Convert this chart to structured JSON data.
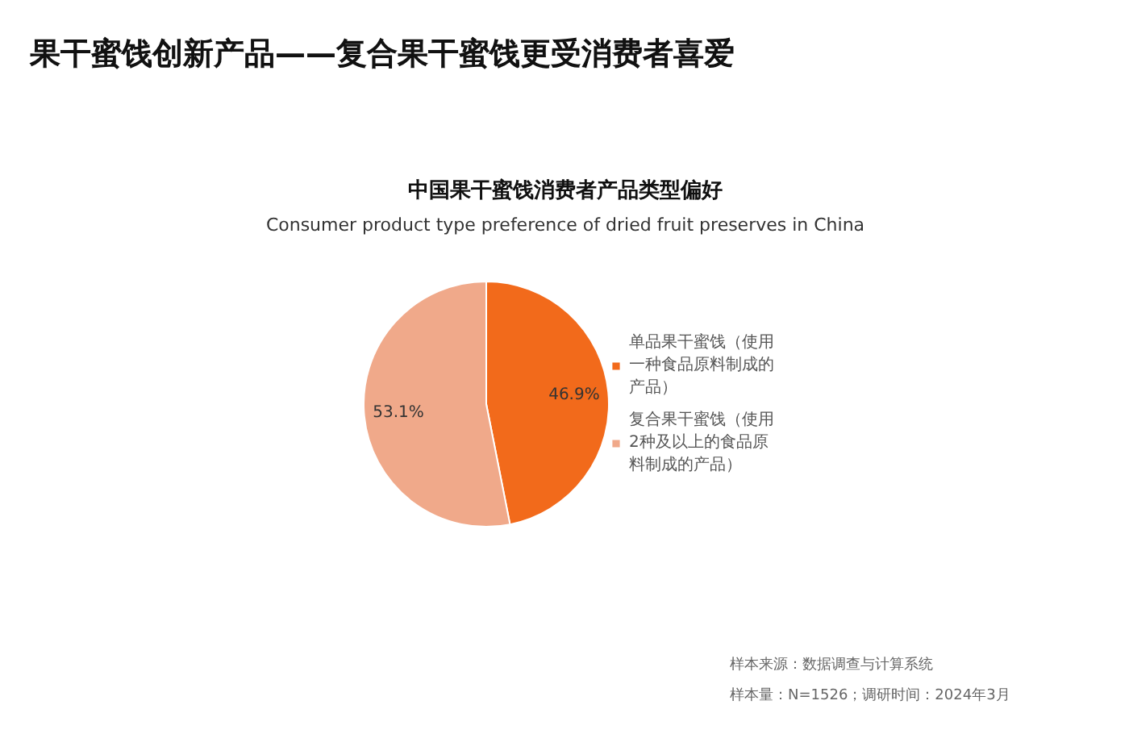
{
  "chart_data": {
    "type": "pie",
    "title": "果干蜜饯创新产品——复合果干蜜饯更受消费者喜爱",
    "subtitle": "中国果干蜜饯消费者产品类型偏好",
    "categories": [
      "单品果干蜜饯（使用一种食品原料制成的产品）",
      "复合果干蜜饯（使用2种及以上的食品原料制成的产品）"
    ],
    "values": [
      46.9,
      53.1
    ],
    "colors": [
      "#f26a1b",
      "#f0a98a"
    ],
    "value_labels": [
      "46.9%",
      "53.1%"
    ],
    "legend": "right",
    "annotations": [
      "Consumer product type preference of dried fruit preserves in China",
      "样本来源：数据调查与计算系统",
      "样本量：N=1526；调研时间：2024年3月"
    ]
  }
}
